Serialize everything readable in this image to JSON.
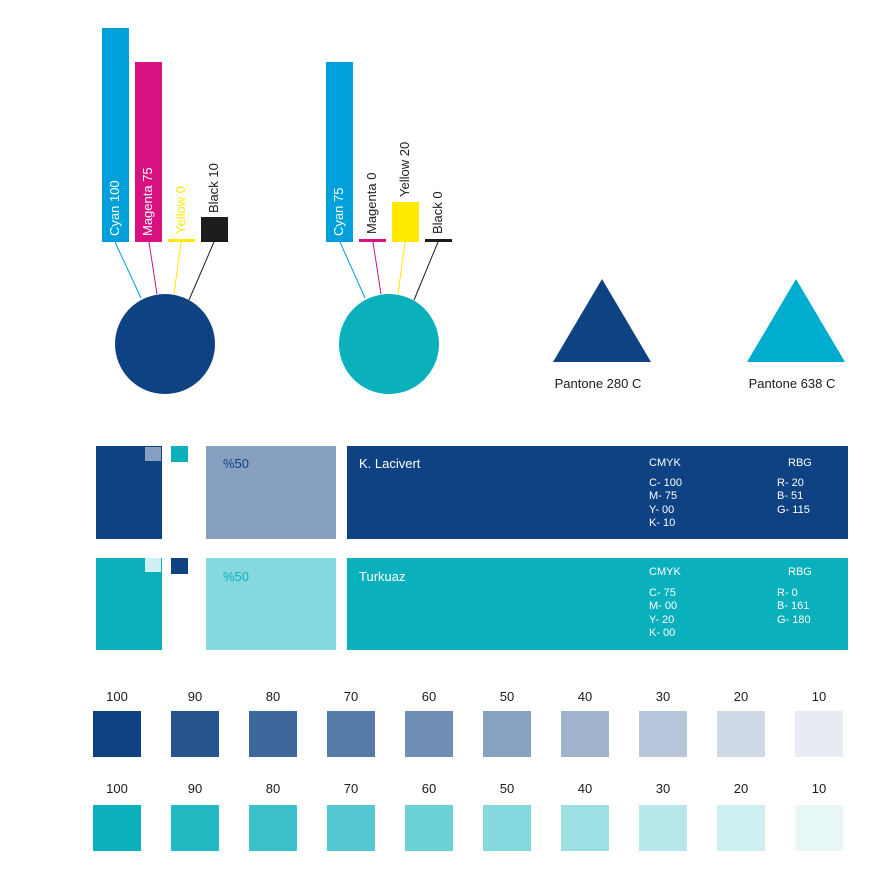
{
  "colors": {
    "navy": "#0E4282",
    "teal": "#0AB1BC",
    "cyan_bar": "#00A0DA",
    "magenta_bar": "#D71180",
    "yellow_bar": "#FFEA00",
    "black_bar": "#1D1D1B"
  },
  "mix1": {
    "cyan": "Cyan 100",
    "magenta": "Magenta 75",
    "yellow": "Yellow 0",
    "black": "Black 10"
  },
  "mix2": {
    "cyan": "Cyan 75",
    "magenta": "Magenta 0",
    "yellow": "Yellow 20",
    "black": "Black 0"
  },
  "pantone": {
    "navy_label": "Pantone 280 C",
    "teal_label": "Pantone 638 C"
  },
  "cards": [
    {
      "tint_label": "%50",
      "name": "K. Lacivert",
      "cmyk_head": "CMYK",
      "rgb_head": "RBG",
      "cmyk": [
        "C- 100",
        "M- 75",
        "Y- 00",
        "K- 10"
      ],
      "rgb": [
        "R- 20",
        "B- 51",
        "G- 115"
      ]
    },
    {
      "tint_label": "%50",
      "name": "Turkuaz",
      "cmyk_head": "CMYK",
      "rgb_head": "RBG",
      "cmyk": [
        "C- 75",
        "M- 00",
        "Y- 20",
        "K- 00"
      ],
      "rgb": [
        "R- 0",
        "B- 161",
        "G- 180"
      ]
    }
  ],
  "tint_levels": [
    "100",
    "90",
    "80",
    "70",
    "60",
    "50",
    "40",
    "30",
    "20",
    "10"
  ],
  "tint_values": [
    100,
    90,
    80,
    70,
    60,
    50,
    40,
    30,
    20,
    10
  ]
}
